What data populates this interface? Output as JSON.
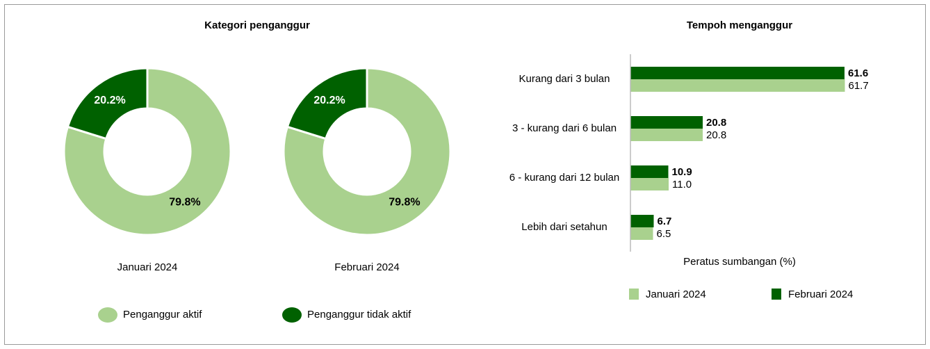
{
  "chart_data": [
    {
      "type": "donut",
      "title": "Kategori penganggur",
      "categories": [
        "Penganggur aktif",
        "Penganggur tidak aktif"
      ],
      "colors": [
        "#a9d18e",
        "#006100"
      ],
      "series": [
        {
          "name": "Januari 2024",
          "values": [
            79.8,
            20.2
          ],
          "value_labels": [
            "79.8%",
            "20.2%"
          ]
        },
        {
          "name": "Februari 2024",
          "values": [
            79.8,
            20.2
          ],
          "value_labels": [
            "79.8%",
            "20.2%"
          ]
        }
      ]
    },
    {
      "type": "hbar",
      "title": "Tempoh menganggur",
      "categories": [
        "Kurang dari 3 bulan",
        "3 - kurang dari 6 bulan",
        "6 - kurang dari 12 bulan",
        "Lebih dari setahun"
      ],
      "xlabel": "Peratus sumbangan (%)",
      "xlim": [
        0,
        70
      ],
      "series": [
        {
          "name": "Februari 2024",
          "color": "#006100",
          "values": [
            61.6,
            20.8,
            10.9,
            6.7
          ]
        },
        {
          "name": "Januari 2024",
          "color": "#a9d18e",
          "values": [
            61.7,
            20.8,
            11.0,
            6.5
          ],
          "value_labels": [
            "61.7",
            "20.8",
            "11.0",
            "6.5"
          ]
        }
      ]
    }
  ]
}
